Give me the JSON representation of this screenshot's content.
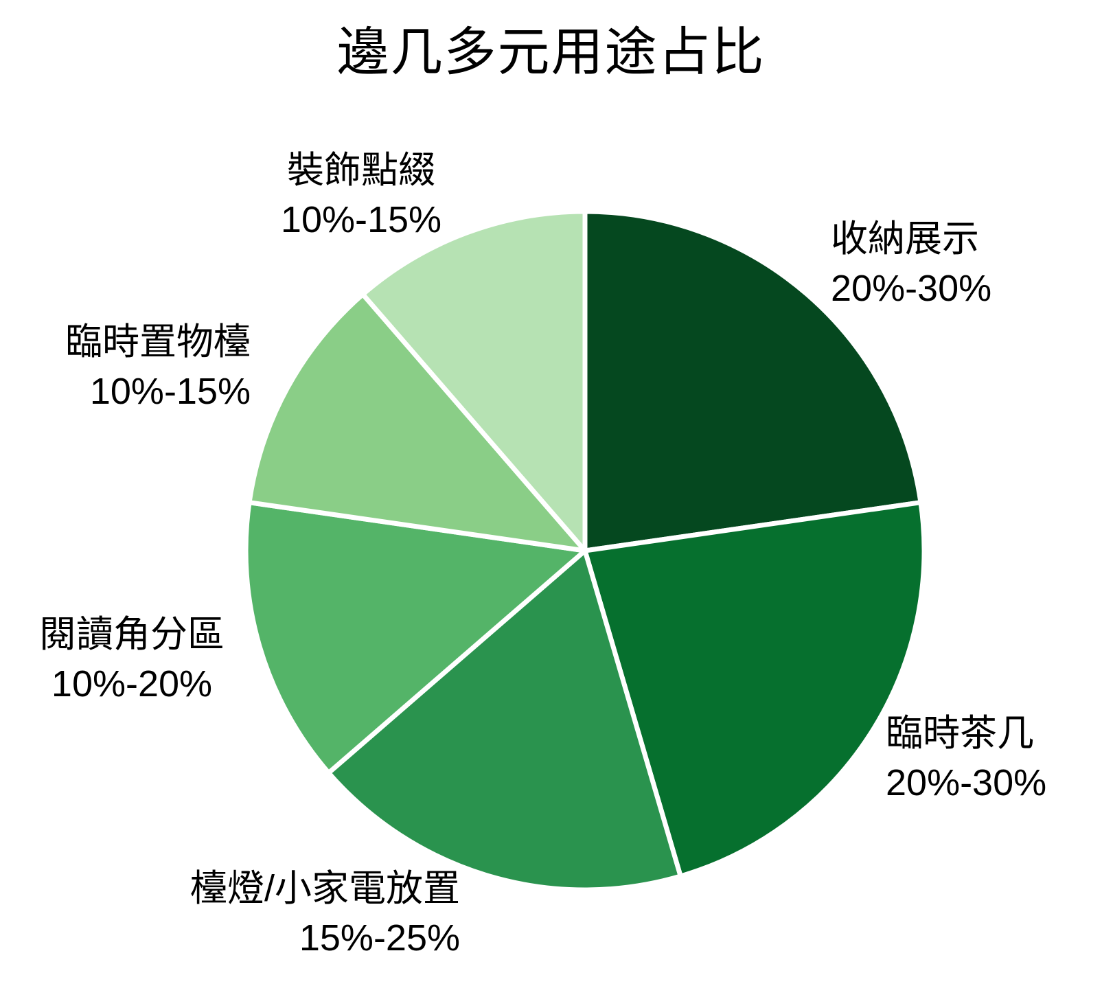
{
  "title": "邊几多元用途占比",
  "chart_data": {
    "type": "pie",
    "title": "邊几多元用途占比",
    "direction": "clockwise",
    "start_angle_deg": 0,
    "legend_position": "outside-labels",
    "background": "#ffffff",
    "separator_color": "#ffffff",
    "text_color": "#000000",
    "slices": [
      {
        "label": "收納展示",
        "range_label": "20%-30%",
        "range_pct": [
          20,
          30
        ],
        "weight": 25,
        "angle_deg": 81.8,
        "color": "#05481f"
      },
      {
        "label": "臨時茶几",
        "range_label": "20%-30%",
        "range_pct": [
          20,
          30
        ],
        "weight": 25,
        "angle_deg": 81.8,
        "color": "#06702e"
      },
      {
        "label": "檯燈/小家電放置",
        "range_label": "15%-25%",
        "range_pct": [
          15,
          25
        ],
        "weight": 20,
        "angle_deg": 65.5,
        "color": "#2a934e"
      },
      {
        "label": "閱讀角分區",
        "range_label": "10%-20%",
        "range_pct": [
          10,
          20
        ],
        "weight": 15,
        "angle_deg": 49.1,
        "color": "#54b468"
      },
      {
        "label": "臨時置物檯",
        "range_label": "10%-15%",
        "range_pct": [
          10,
          15
        ],
        "weight": 12.5,
        "angle_deg": 40.9,
        "color": "#8ace87"
      },
      {
        "label": "裝飾點綴",
        "range_label": "10%-15%",
        "range_pct": [
          10,
          15
        ],
        "weight": 12.5,
        "angle_deg": 40.9,
        "color": "#b6e2b3"
      }
    ]
  }
}
